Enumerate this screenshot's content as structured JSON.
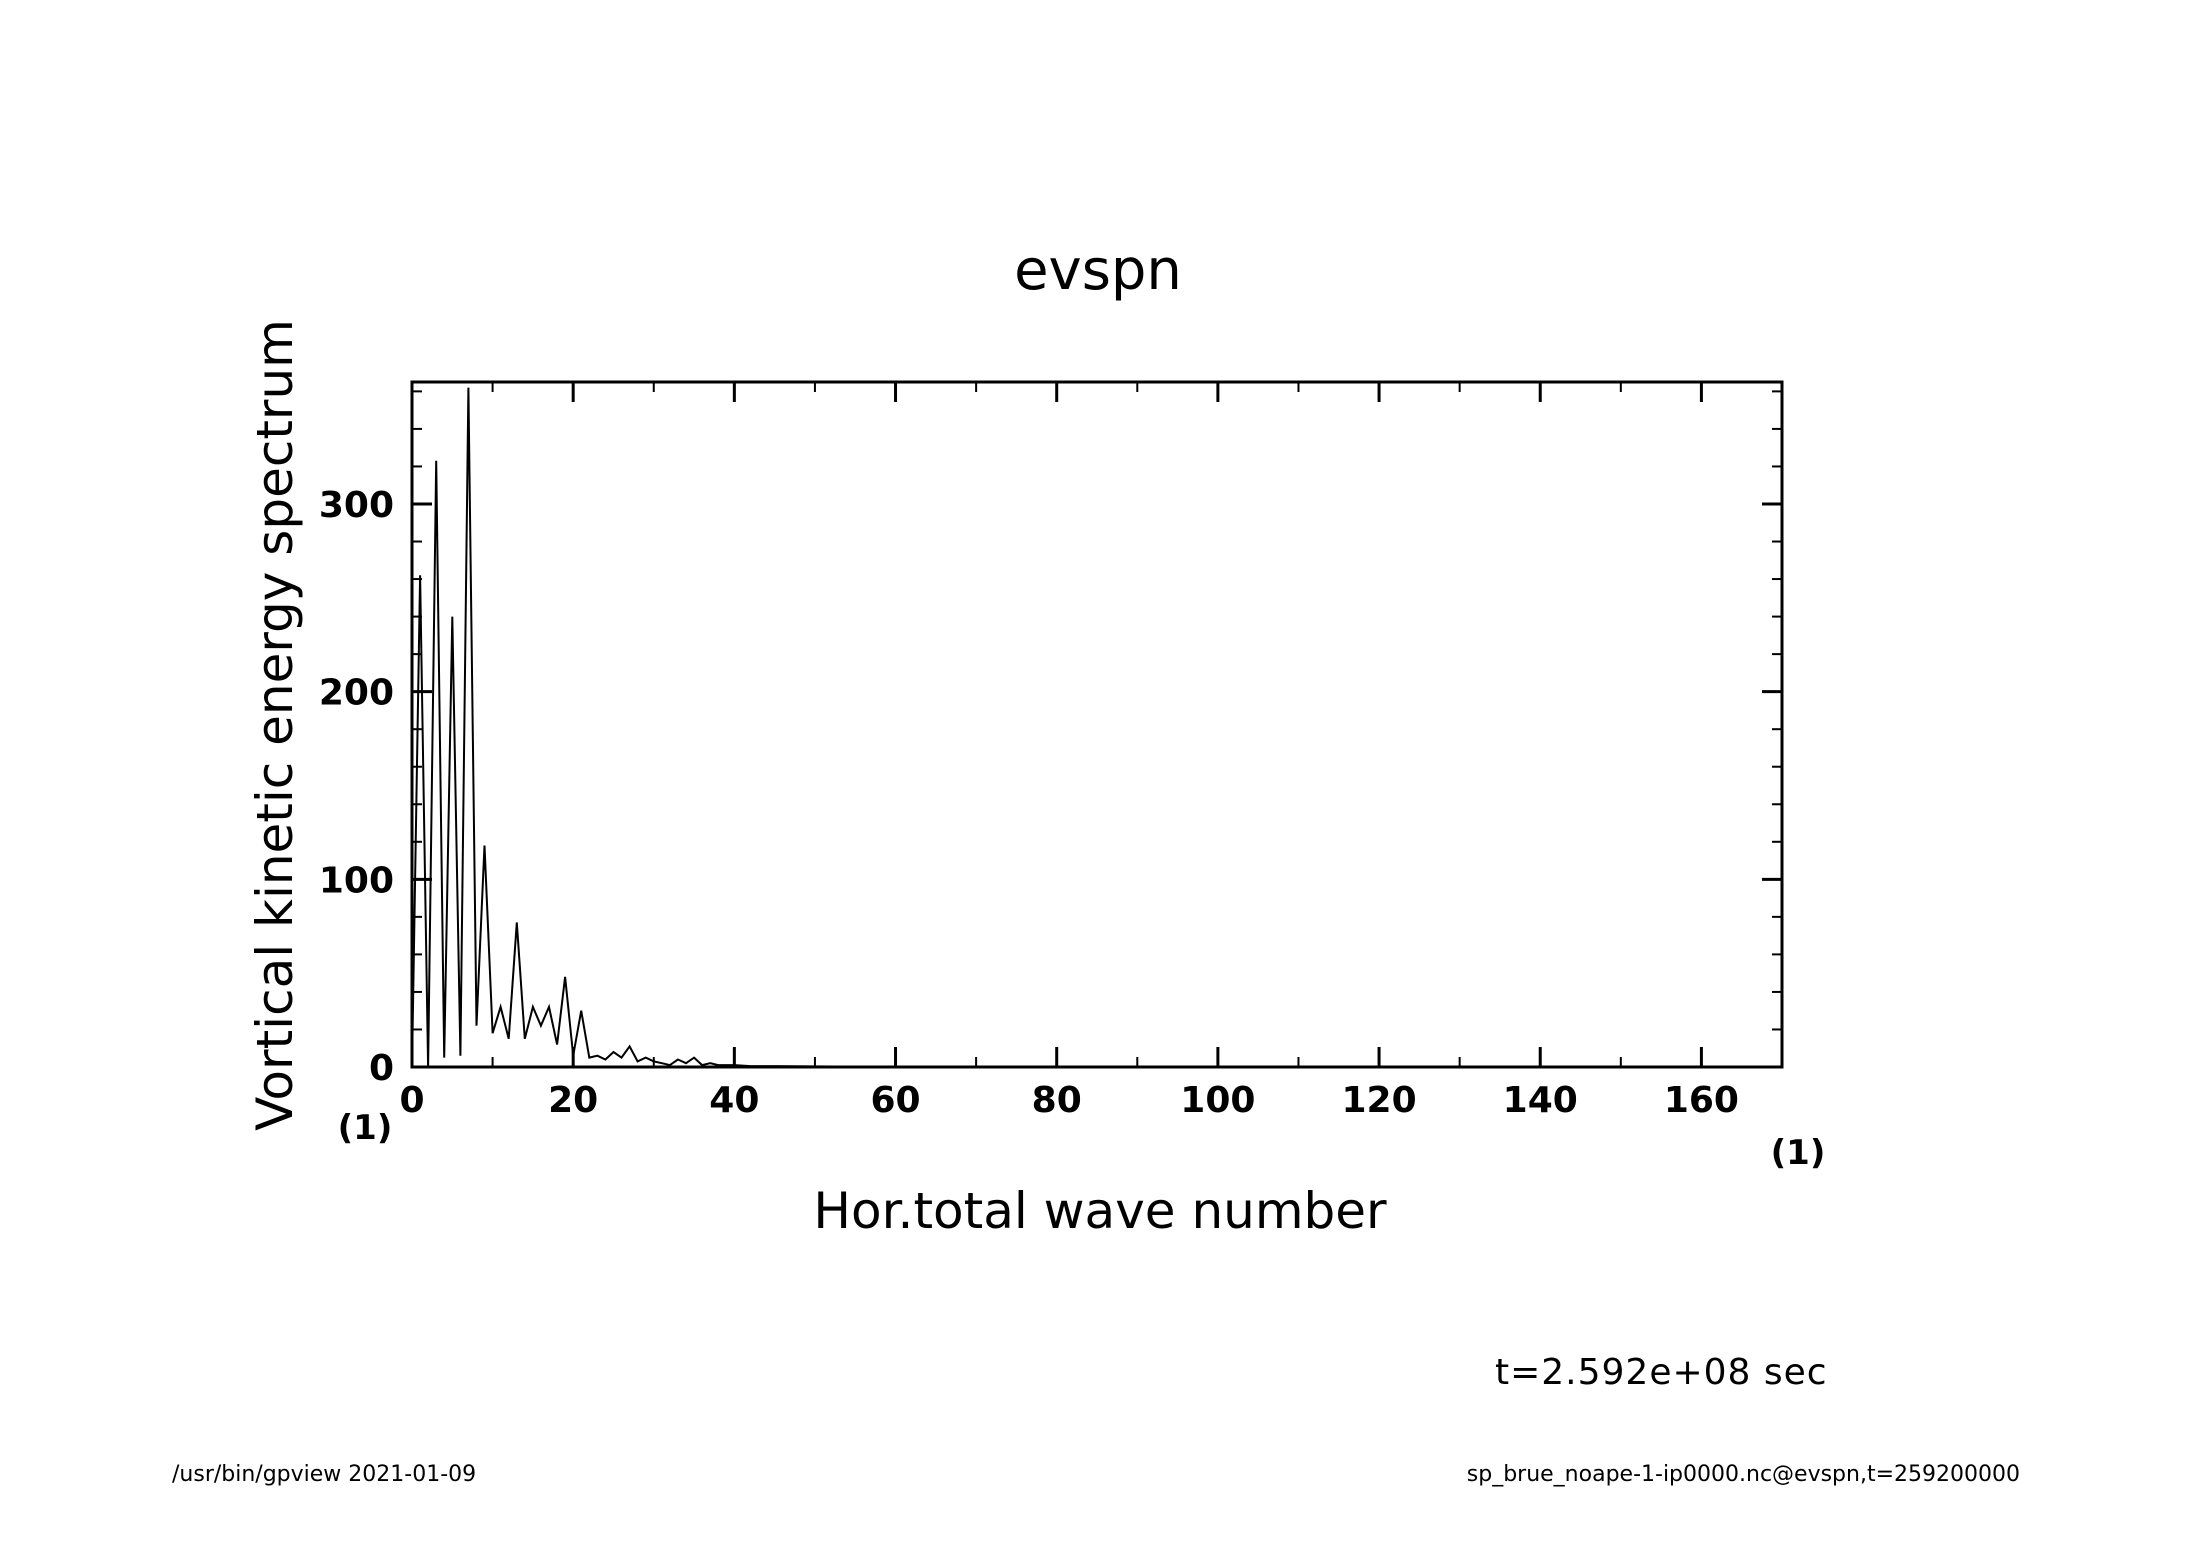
{
  "chart_data": {
    "type": "line",
    "title": "evspn",
    "xlabel": "Hor.total wave number",
    "ylabel": "Vortical kinetic energy spectrum",
    "x_unit": "(1)",
    "y_unit": "(1)",
    "xlim": [
      0,
      170
    ],
    "ylim": [
      0,
      365
    ],
    "x_ticks": [
      0,
      20,
      40,
      60,
      80,
      100,
      120,
      140,
      160
    ],
    "y_ticks": [
      0,
      100,
      200,
      300
    ],
    "grid": false,
    "series": [
      {
        "x": [
          0,
          1,
          2,
          3,
          4,
          5,
          6,
          7,
          8,
          9,
          10,
          11,
          12,
          13,
          14,
          15,
          16,
          17,
          18,
          19,
          20,
          21,
          22,
          23,
          24,
          25,
          26,
          27,
          28,
          29,
          30,
          31,
          32,
          33,
          34,
          35,
          36,
          37,
          38,
          39,
          40,
          42,
          45,
          50,
          55,
          60,
          70,
          80,
          100,
          120,
          140,
          160,
          170
        ],
        "values": [
          0,
          262,
          0,
          323,
          5,
          240,
          6,
          362,
          22,
          118,
          18,
          32,
          15,
          77,
          15,
          32,
          22,
          32,
          12,
          48,
          6,
          30,
          5,
          6,
          4,
          8,
          5,
          11,
          3,
          5,
          3,
          2,
          1,
          4,
          2,
          5,
          1,
          2,
          1,
          1,
          1,
          0.5,
          0.5,
          0.3,
          0.2,
          0.1,
          0,
          0,
          0,
          0,
          0,
          0,
          0
        ]
      }
    ]
  },
  "annotations": {
    "time": "t=2.592e+08 sec",
    "footer_left": "/usr/bin/gpview   2021-01-09",
    "footer_right": "sp_brue_noape-1-ip0000.nc@evspn,t=259200000"
  }
}
